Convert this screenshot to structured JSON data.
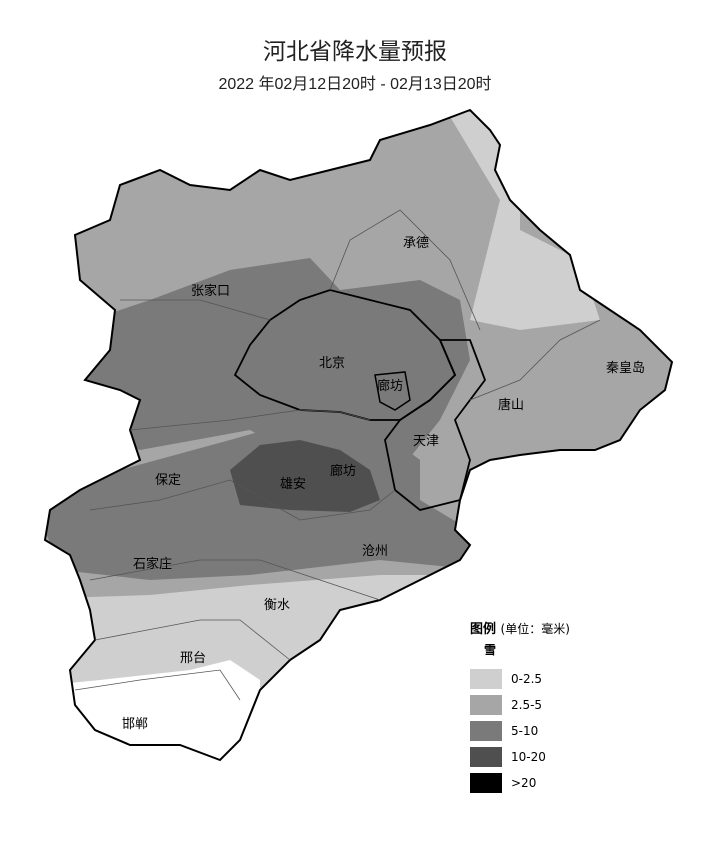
{
  "title": "河北省降水量预报",
  "subtitle": "2022 年02月12日20时 - 02月13日20时",
  "legend": {
    "title": "图例",
    "unit": "(单位：毫米)",
    "type": "雪",
    "items": [
      {
        "label": "0-2.5",
        "color": "#cfcfcf"
      },
      {
        "label": "2.5-5",
        "color": "#a6a6a6"
      },
      {
        "label": "5-10",
        "color": "#7a7a7a"
      },
      {
        "label": "10-20",
        "color": "#4f4f4f"
      },
      {
        "label": ">20",
        "color": "#000000"
      }
    ]
  },
  "cities": [
    {
      "name": "张家口"
    },
    {
      "name": "承德"
    },
    {
      "name": "北京"
    },
    {
      "name": "廊坊"
    },
    {
      "name": "秦皇岛"
    },
    {
      "name": "唐山"
    },
    {
      "name": "天津"
    },
    {
      "name": "保定"
    },
    {
      "name": "雄安"
    },
    {
      "name": "廊坊"
    },
    {
      "name": "石家庄"
    },
    {
      "name": "沧州"
    },
    {
      "name": "衡水"
    },
    {
      "name": "邢台"
    },
    {
      "name": "邯郸"
    }
  ]
}
